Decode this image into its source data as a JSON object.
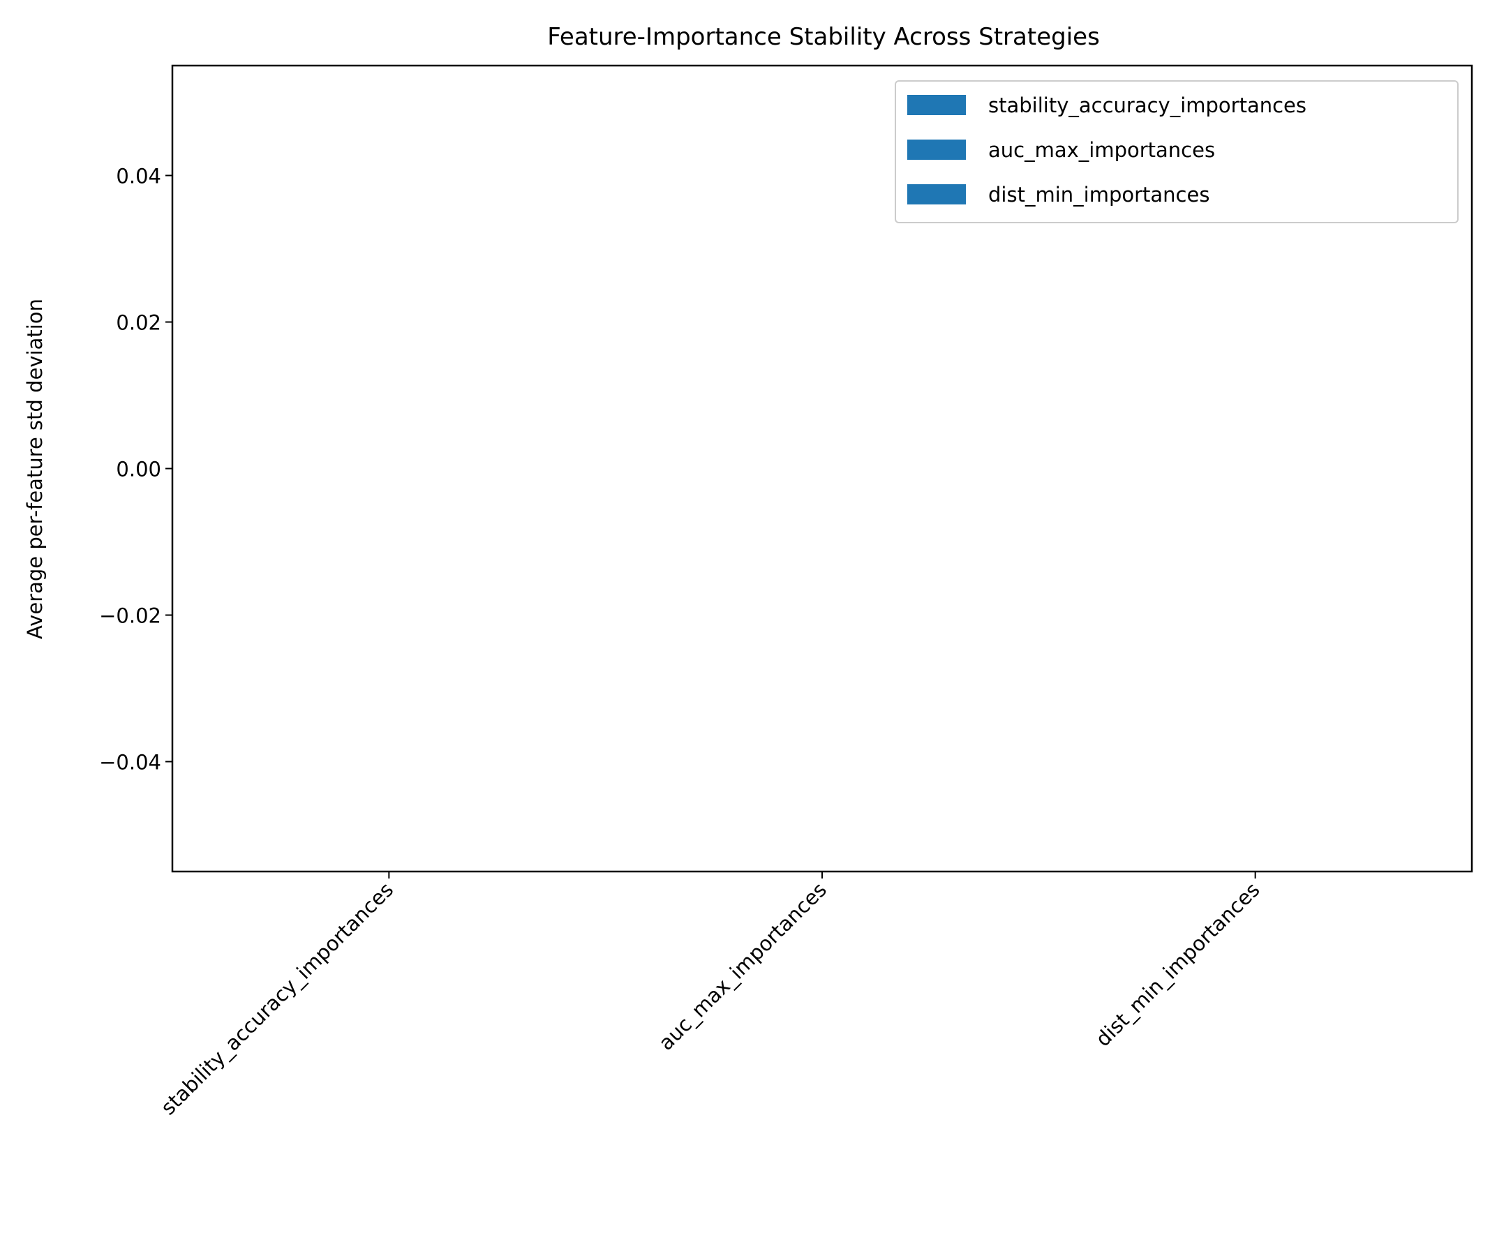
{
  "chart_data": {
    "type": "bar",
    "title": "Feature-Importance Stability Across Strategies",
    "xlabel": "",
    "ylabel": "Average per-feature std deviation",
    "categories": [
      "stability_accuracy_importances",
      "auc_max_importances",
      "dist_min_importances"
    ],
    "series": [
      {
        "name": "stability_accuracy_importances",
        "values": [
          0,
          null,
          null
        ]
      },
      {
        "name": "auc_max_importances",
        "values": [
          null,
          0,
          null
        ]
      },
      {
        "name": "dist_min_importances",
        "values": [
          null,
          null,
          0
        ]
      }
    ],
    "ylim": [
      -0.055,
      0.055
    ],
    "yticks": [
      -0.04,
      -0.02,
      0.0,
      0.02,
      0.04
    ],
    "ytick_labels": [
      "−0.04",
      "−0.02",
      "0.00",
      "0.02",
      "0.04"
    ],
    "grid": false,
    "legend_position": "top-right",
    "bar_color": "#1f77b4"
  }
}
